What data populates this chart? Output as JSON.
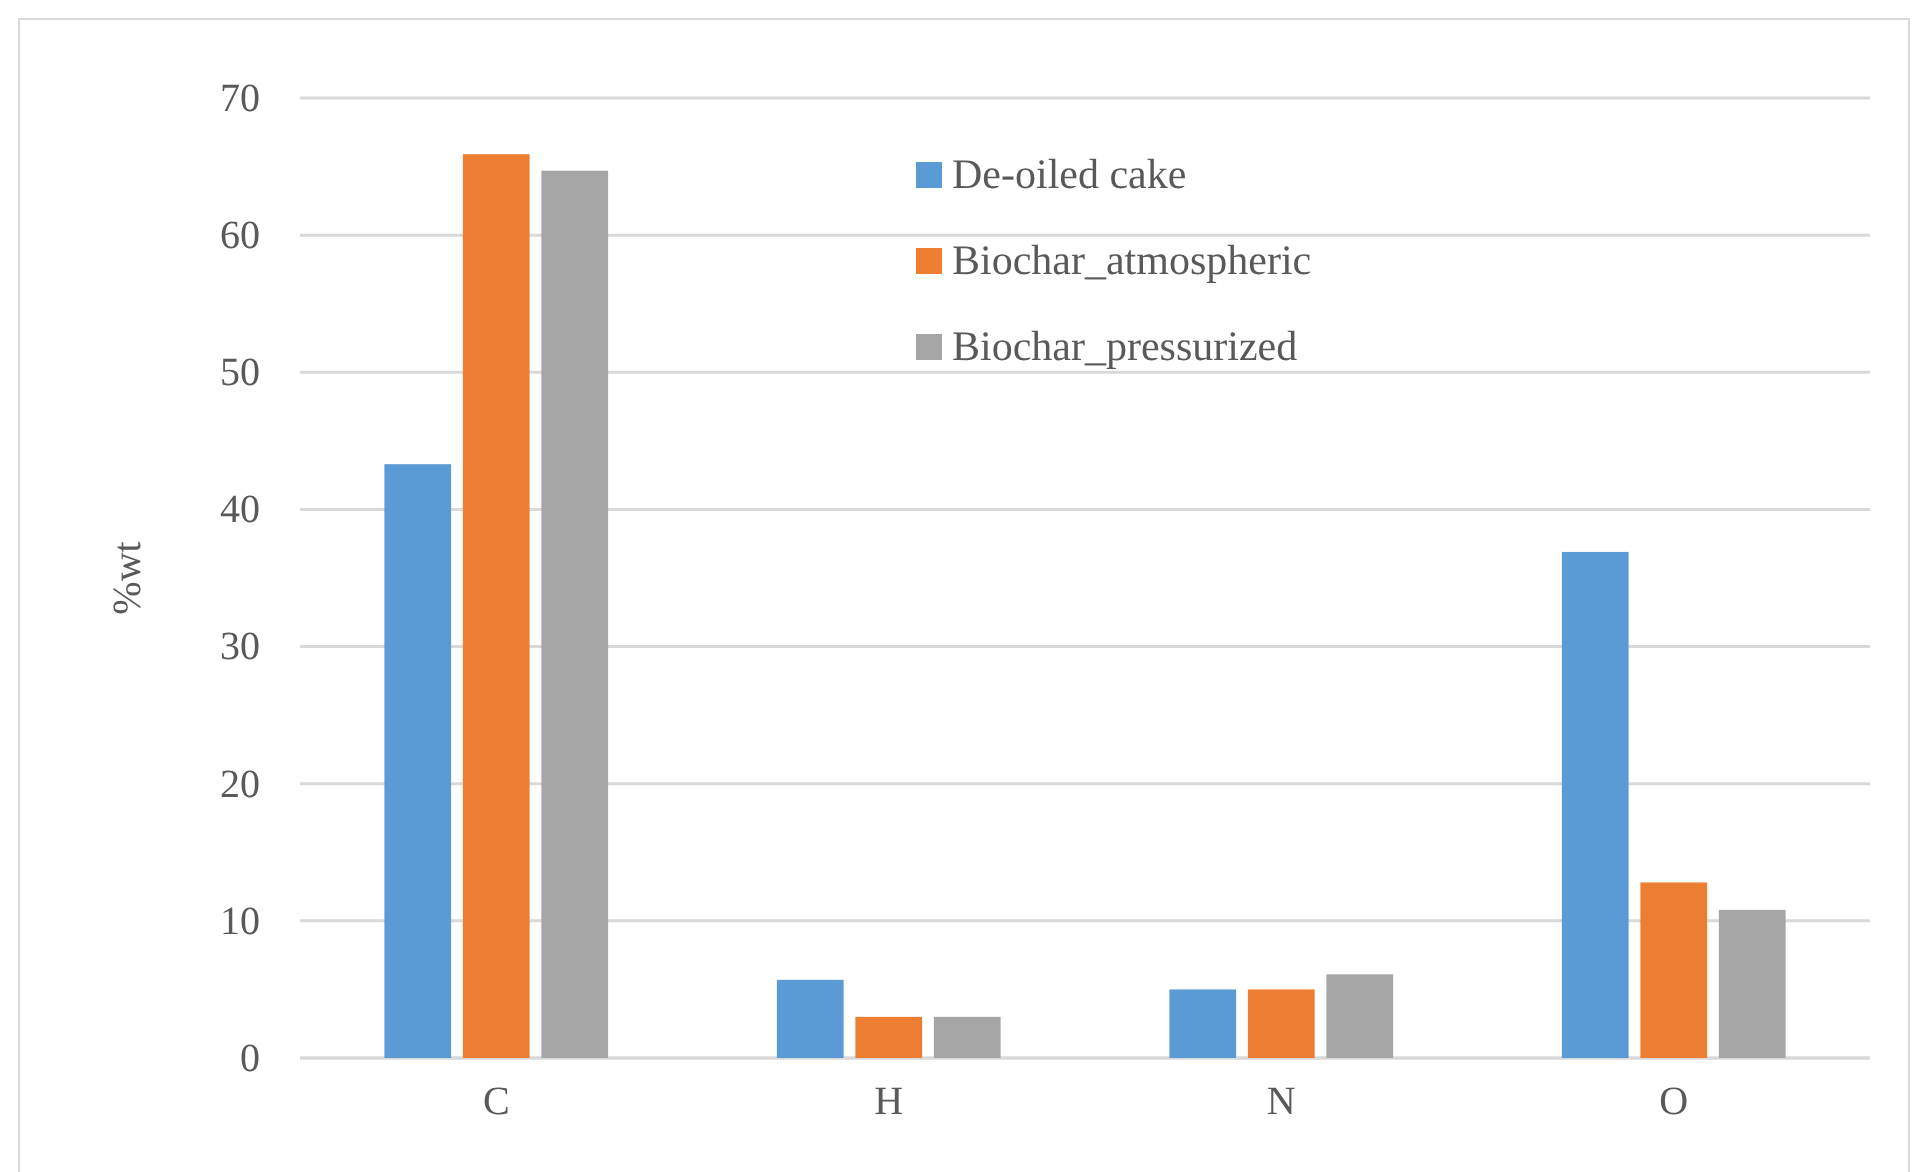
{
  "chart_data": {
    "type": "bar",
    "ylabel": "%wt",
    "categories": [
      "C",
      "H",
      "N",
      "O"
    ],
    "series": [
      {
        "name": "De-oiled cake",
        "color": "#5b9bd5",
        "values": [
          43.3,
          5.7,
          5.0,
          36.9
        ]
      },
      {
        "name": "Biochar_atmospheric",
        "color": "#ed7d31",
        "values": [
          65.9,
          3.0,
          5.0,
          12.8
        ]
      },
      {
        "name": "Biochar_pressurized",
        "color": "#a5a5a5",
        "values": [
          64.7,
          3.0,
          6.1,
          10.8
        ]
      }
    ],
    "ylim": [
      0,
      70
    ],
    "yticks": [
      0,
      10,
      20,
      30,
      40,
      50,
      60,
      70
    ],
    "grid": "y",
    "legend": "top right"
  }
}
